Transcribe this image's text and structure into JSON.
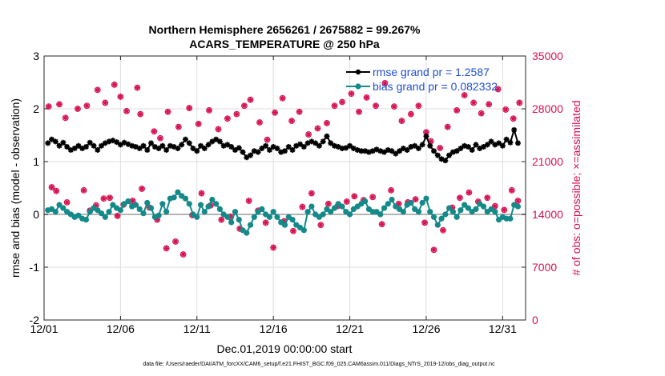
{
  "chart_data": {
    "type": "line",
    "title_line1": "Northern Hemisphere 2656261 / 2675882 = 99.267%",
    "title_line2": "ACARS_TEMPERATURE @ 250 hPa",
    "xlabel": "Dec.01,2019 00:00:00 start",
    "ylabel_left": "rmse and bias (model - observation)",
    "ylabel_right": "# of obs: o=possible; ×=assimilated",
    "xlim": [
      0,
      31.5
    ],
    "ylim_left": [
      -2,
      3
    ],
    "ylim_right": [
      0,
      35000
    ],
    "x_ticks": [
      0,
      5,
      10,
      15,
      20,
      25,
      30
    ],
    "x_tick_labels": [
      "12/01",
      "12/06",
      "12/11",
      "12/16",
      "12/21",
      "12/26",
      "12/31"
    ],
    "y_ticks_left": [
      -2,
      -1,
      0,
      1,
      2,
      3
    ],
    "y_tick_labels_left": [
      "-2",
      "-1",
      "0",
      "1",
      "2",
      "3"
    ],
    "y_ticks_right": [
      0,
      7000,
      14000,
      21000,
      28000,
      35000
    ],
    "y_tick_labels_right": [
      "0",
      "7000",
      "14000",
      "21000",
      "28000",
      "35000"
    ],
    "grid": true,
    "footnote": "data file: /Users/raeder/DAI/ATM_forcXX/CAM6_setup/f.e21.FHIST_BGC.f09_025.CAM6assim.011/Diags_NTrS_2019-12/obs_diag_output.nc",
    "legend": {
      "placement": "top-right",
      "entries": [
        {
          "label": "rmse grand pr = 1.2587",
          "color": "#000000"
        },
        {
          "label": "bias grand pr = 0.082332",
          "color": "#138a89"
        }
      ]
    },
    "series": [
      {
        "name": "rmse",
        "color": "#000000",
        "x": [
          0.25,
          0.5,
          0.75,
          1,
          1.25,
          1.5,
          1.75,
          2,
          2.25,
          2.5,
          2.75,
          3,
          3.25,
          3.5,
          3.75,
          4,
          4.25,
          4.5,
          4.75,
          5,
          5.25,
          5.5,
          5.75,
          6,
          6.25,
          6.5,
          6.75,
          7,
          7.25,
          7.5,
          7.75,
          8,
          8.25,
          8.5,
          8.75,
          9,
          9.25,
          9.5,
          9.75,
          10,
          10.25,
          10.5,
          10.75,
          11,
          11.25,
          11.5,
          11.75,
          12,
          12.25,
          12.5,
          12.75,
          13,
          13.25,
          13.5,
          13.75,
          14,
          14.25,
          14.5,
          14.75,
          15,
          15.25,
          15.5,
          15.75,
          16,
          16.25,
          16.5,
          16.75,
          17,
          17.25,
          17.5,
          17.75,
          18,
          18.25,
          18.5,
          18.75,
          19,
          19.25,
          19.5,
          19.75,
          20,
          20.25,
          20.5,
          20.75,
          21,
          21.25,
          21.5,
          21.75,
          22,
          22.25,
          22.5,
          22.75,
          23,
          23.25,
          23.5,
          23.75,
          24,
          24.25,
          24.5,
          24.75,
          25,
          25.25,
          25.5,
          25.75,
          26,
          26.25,
          26.5,
          26.75,
          27,
          27.25,
          27.5,
          27.75,
          28,
          28.25,
          28.5,
          28.75,
          29,
          29.25,
          29.5,
          29.75,
          30,
          30.25,
          30.5,
          30.75,
          31
        ],
        "values": [
          1.35,
          1.42,
          1.38,
          1.3,
          1.36,
          1.28,
          1.22,
          1.25,
          1.3,
          1.25,
          1.28,
          1.36,
          1.3,
          1.22,
          1.3,
          1.35,
          1.38,
          1.4,
          1.37,
          1.32,
          1.36,
          1.33,
          1.3,
          1.28,
          1.25,
          1.3,
          1.22,
          1.35,
          1.28,
          1.25,
          1.3,
          1.22,
          1.3,
          1.28,
          1.25,
          1.32,
          1.42,
          1.35,
          1.25,
          1.2,
          1.3,
          1.25,
          1.32,
          1.38,
          1.42,
          1.38,
          1.3,
          1.32,
          1.28,
          1.22,
          1.26,
          1.18,
          1.08,
          1.12,
          1.2,
          1.18,
          1.25,
          1.3,
          1.22,
          1.28,
          1.25,
          1.18,
          1.2,
          1.28,
          1.22,
          1.3,
          1.33,
          1.28,
          1.35,
          1.38,
          1.35,
          1.3,
          1.38,
          1.48,
          1.35,
          1.3,
          1.28,
          1.25,
          1.26,
          1.3,
          1.25,
          1.22,
          1.2,
          1.2,
          1.18,
          1.2,
          1.23,
          1.2,
          1.18,
          1.22,
          1.2,
          1.15,
          1.2,
          1.25,
          1.22,
          1.28,
          1.3,
          1.25,
          1.32,
          1.48,
          1.3,
          1.2,
          1.12,
          1.05,
          1.02,
          1.12,
          1.18,
          1.2,
          1.25,
          1.3,
          1.28,
          1.22,
          1.32,
          1.25,
          1.28,
          1.32,
          1.38,
          1.32,
          1.35,
          1.3,
          1.42,
          1.36,
          1.6,
          1.35
        ]
      },
      {
        "name": "bias",
        "color": "#138a89",
        "x": [
          0.25,
          0.5,
          0.75,
          1,
          1.25,
          1.5,
          1.75,
          2,
          2.25,
          2.5,
          2.75,
          3,
          3.25,
          3.5,
          3.75,
          4,
          4.25,
          4.5,
          4.75,
          5,
          5.25,
          5.5,
          5.75,
          6,
          6.25,
          6.5,
          6.75,
          7,
          7.25,
          7.5,
          7.75,
          8,
          8.25,
          8.5,
          8.75,
          9,
          9.25,
          9.5,
          9.75,
          10,
          10.25,
          10.5,
          10.75,
          11,
          11.25,
          11.5,
          11.75,
          12,
          12.25,
          12.5,
          12.75,
          13,
          13.25,
          13.5,
          13.75,
          14,
          14.25,
          14.5,
          14.75,
          15,
          15.25,
          15.5,
          15.75,
          16,
          16.25,
          16.5,
          16.75,
          17,
          17.25,
          17.5,
          17.75,
          18,
          18.25,
          18.5,
          18.75,
          19,
          19.25,
          19.5,
          19.75,
          20,
          20.25,
          20.5,
          20.75,
          21,
          21.25,
          21.5,
          21.75,
          22,
          22.25,
          22.5,
          22.75,
          23,
          23.25,
          23.5,
          23.75,
          24,
          24.25,
          24.5,
          24.75,
          25,
          25.25,
          25.5,
          25.75,
          26,
          26.25,
          26.5,
          26.75,
          27,
          27.25,
          27.5,
          27.75,
          28,
          28.25,
          28.5,
          28.75,
          29,
          29.25,
          29.5,
          29.75,
          30,
          30.25,
          30.5,
          30.75,
          31
        ],
        "values": [
          0.08,
          0.1,
          0.05,
          0.18,
          0.12,
          0.05,
          0.0,
          -0.05,
          -0.02,
          -0.08,
          -0.1,
          0.05,
          0.12,
          0.08,
          0.02,
          -0.05,
          0.05,
          0.18,
          0.12,
          0.08,
          0.2,
          0.25,
          0.15,
          0.18,
          0.1,
          0.02,
          0.22,
          0.12,
          -0.05,
          -0.02,
          0.2,
          0.05,
          0.3,
          0.32,
          0.42,
          0.35,
          0.3,
          0.2,
          0.0,
          -0.05,
          0.18,
          0.05,
          0.15,
          0.28,
          0.2,
          0.1,
          0.0,
          -0.05,
          -0.15,
          0.05,
          -0.1,
          -0.3,
          -0.35,
          -0.2,
          -0.05,
          0.05,
          0.1,
          0.0,
          -0.05,
          0.05,
          -0.05,
          -0.15,
          -0.2,
          -0.05,
          -0.1,
          -0.2,
          -0.25,
          -0.3,
          0.05,
          0.15,
          0.0,
          -0.05,
          0.0,
          0.1,
          0.05,
          0.12,
          0.2,
          0.15,
          0.05,
          0.0,
          0.1,
          0.15,
          0.2,
          0.25,
          0.1,
          0.05,
          0.05,
          0.0,
          0.12,
          0.2,
          0.28,
          0.15,
          0.1,
          0.05,
          0.18,
          0.22,
          0.1,
          0.05,
          0.22,
          0.3,
          0.05,
          -0.05,
          -0.2,
          -0.08,
          0.0,
          0.12,
          0.05,
          -0.05,
          0.08,
          0.18,
          0.12,
          0.05,
          0.1,
          0.2,
          0.15,
          0.05,
          0.1,
          0.05,
          -0.1,
          -0.05,
          -0.08,
          -0.08,
          0.18,
          0.15
        ]
      },
      {
        "name": "obs possible (o), upper cluster",
        "color": "#d6114f",
        "axis": "right",
        "marker": "o",
        "x": [
          0.3,
          1.0,
          1.4,
          2.2,
          2.8,
          3.5,
          4.0,
          4.6,
          5.0,
          5.4,
          6.1,
          6.3,
          7.2,
          7.6,
          8.1,
          8.8,
          9.5,
          10.1,
          10.8,
          11.4,
          12.0,
          12.6,
          13.1,
          13.5,
          14.1,
          14.6,
          15.1,
          15.6,
          16.2,
          16.7,
          17.3,
          17.9,
          18.5,
          19.0,
          19.5,
          20.1,
          20.6,
          21.1,
          21.7,
          22.3,
          22.9,
          23.4,
          24.0,
          24.5,
          25.0,
          25.3,
          25.9,
          26.4,
          27.0,
          27.5,
          28.1,
          28.6,
          29.1,
          29.7,
          30.2,
          30.7,
          31.1
        ],
        "values": [
          28300,
          28600,
          26800,
          28000,
          28400,
          30500,
          28800,
          31200,
          29600,
          27700,
          30800,
          27300,
          25000,
          24100,
          27600,
          25600,
          28100,
          26000,
          27800,
          25300,
          26700,
          27300,
          28400,
          29200,
          26200,
          23900,
          27500,
          29400,
          26400,
          27600,
          24600,
          25400,
          26100,
          28400,
          28900,
          30000,
          27600,
          29500,
          28400,
          31400,
          28300,
          26400,
          27300,
          28400,
          24900,
          23700,
          22800,
          25600,
          27800,
          29800,
          28800,
          27400,
          28600,
          30600,
          27900,
          26700,
          28800
        ]
      },
      {
        "name": "obs assimilated (×), upper cluster",
        "color": "#d6114f",
        "axis": "right",
        "marker": "*",
        "x": [
          0.3,
          1.0,
          1.4,
          2.2,
          2.8,
          3.5,
          4.0,
          4.6,
          5.0,
          5.4,
          6.1,
          6.3,
          7.2,
          7.6,
          8.1,
          8.8,
          9.5,
          10.1,
          10.8,
          11.4,
          12.0,
          12.6,
          13.1,
          13.5,
          14.1,
          14.6,
          15.1,
          15.6,
          16.2,
          16.7,
          17.3,
          17.9,
          18.5,
          19.0,
          19.5,
          20.1,
          20.6,
          21.1,
          21.7,
          22.3,
          22.9,
          23.4,
          24.0,
          24.5,
          25.0,
          25.3,
          25.9,
          26.4,
          27.0,
          27.5,
          28.1,
          28.6,
          29.1,
          29.7,
          30.2,
          30.7,
          31.1
        ],
        "values": [
          28300,
          28600,
          26800,
          28000,
          28400,
          30500,
          28800,
          31200,
          29600,
          27700,
          30800,
          27300,
          25000,
          24100,
          27600,
          25600,
          28100,
          26000,
          27800,
          25300,
          26700,
          27300,
          28400,
          29200,
          26200,
          23900,
          27500,
          29400,
          26400,
          27600,
          24600,
          25400,
          26100,
          28400,
          28900,
          30000,
          27600,
          29500,
          28400,
          31400,
          28300,
          26400,
          27300,
          28400,
          24900,
          23700,
          22800,
          25600,
          27800,
          29800,
          28800,
          27400,
          28600,
          30600,
          27900,
          26700,
          28800
        ]
      },
      {
        "name": "obs possible (o), lower cluster",
        "color": "#d6114f",
        "axis": "right",
        "marker": "o",
        "x": [
          0.5,
          0.8,
          1.5,
          2.6,
          3.0,
          3.4,
          3.9,
          4.3,
          4.8,
          5.2,
          5.8,
          6.4,
          6.9,
          7.4,
          8.0,
          8.6,
          9.1,
          9.7,
          10.3,
          10.9,
          11.6,
          12.2,
          12.8,
          13.4,
          14.0,
          14.5,
          15.0,
          15.7,
          16.3,
          16.9,
          17.5,
          18.1,
          18.6,
          19.2,
          19.8,
          20.3,
          20.9,
          21.5,
          22.1,
          22.7,
          23.2,
          23.8,
          24.3,
          24.9,
          25.5,
          26.1,
          26.7,
          27.2,
          27.8,
          28.4,
          29.0,
          29.5,
          30.1,
          30.6,
          31.0
        ],
        "values": [
          17600,
          17100,
          15600,
          17200,
          14500,
          15200,
          16100,
          16200,
          13800,
          15300,
          15800,
          17400,
          14900,
          13300,
          9500,
          10400,
          8700,
          13900,
          16800,
          15200,
          13300,
          13700,
          12100,
          15800,
          14500,
          12900,
          9600,
          13100,
          11800,
          15000,
          16800,
          12600,
          15400,
          15100,
          15700,
          16400,
          15900,
          16300,
          12700,
          17200,
          15400,
          15600,
          16000,
          12900,
          9300,
          11900,
          14900,
          16200,
          16900,
          15700,
          16200,
          15100,
          14600,
          17200,
          15800
        ]
      },
      {
        "name": "obs assimilated (×), lower cluster",
        "color": "#d6114f",
        "axis": "right",
        "marker": "*",
        "x": [
          0.5,
          0.8,
          1.5,
          2.6,
          3.0,
          3.4,
          3.9,
          4.3,
          4.8,
          5.2,
          5.8,
          6.4,
          6.9,
          7.4,
          8.0,
          8.6,
          9.1,
          9.7,
          10.3,
          10.9,
          11.6,
          12.2,
          12.8,
          13.4,
          14.0,
          14.5,
          15.0,
          15.7,
          16.3,
          16.9,
          17.5,
          18.1,
          18.6,
          19.2,
          19.8,
          20.3,
          20.9,
          21.5,
          22.1,
          22.7,
          23.2,
          23.8,
          24.3,
          24.9,
          25.5,
          26.1,
          26.7,
          27.2,
          27.8,
          28.4,
          29.0,
          29.5,
          30.1,
          30.6,
          31.0
        ],
        "values": [
          17600,
          17100,
          15600,
          17200,
          14500,
          15200,
          16100,
          16200,
          13800,
          15300,
          15800,
          17400,
          14900,
          13300,
          9500,
          10400,
          8700,
          13900,
          16800,
          15200,
          13300,
          13700,
          12100,
          15800,
          14500,
          12900,
          9600,
          13100,
          11800,
          15000,
          16800,
          12600,
          15400,
          15100,
          15700,
          16400,
          15900,
          16300,
          12700,
          17200,
          15400,
          15600,
          16000,
          12900,
          9300,
          11900,
          14900,
          16200,
          16900,
          15700,
          16200,
          15100,
          14600,
          17200,
          15800
        ]
      }
    ]
  },
  "colors": {
    "rmse": "#000000",
    "bias": "#138a89",
    "obs": "#d6114f",
    "zero_line": "#b4b4b4",
    "legend_text": "#1f4fd6"
  }
}
